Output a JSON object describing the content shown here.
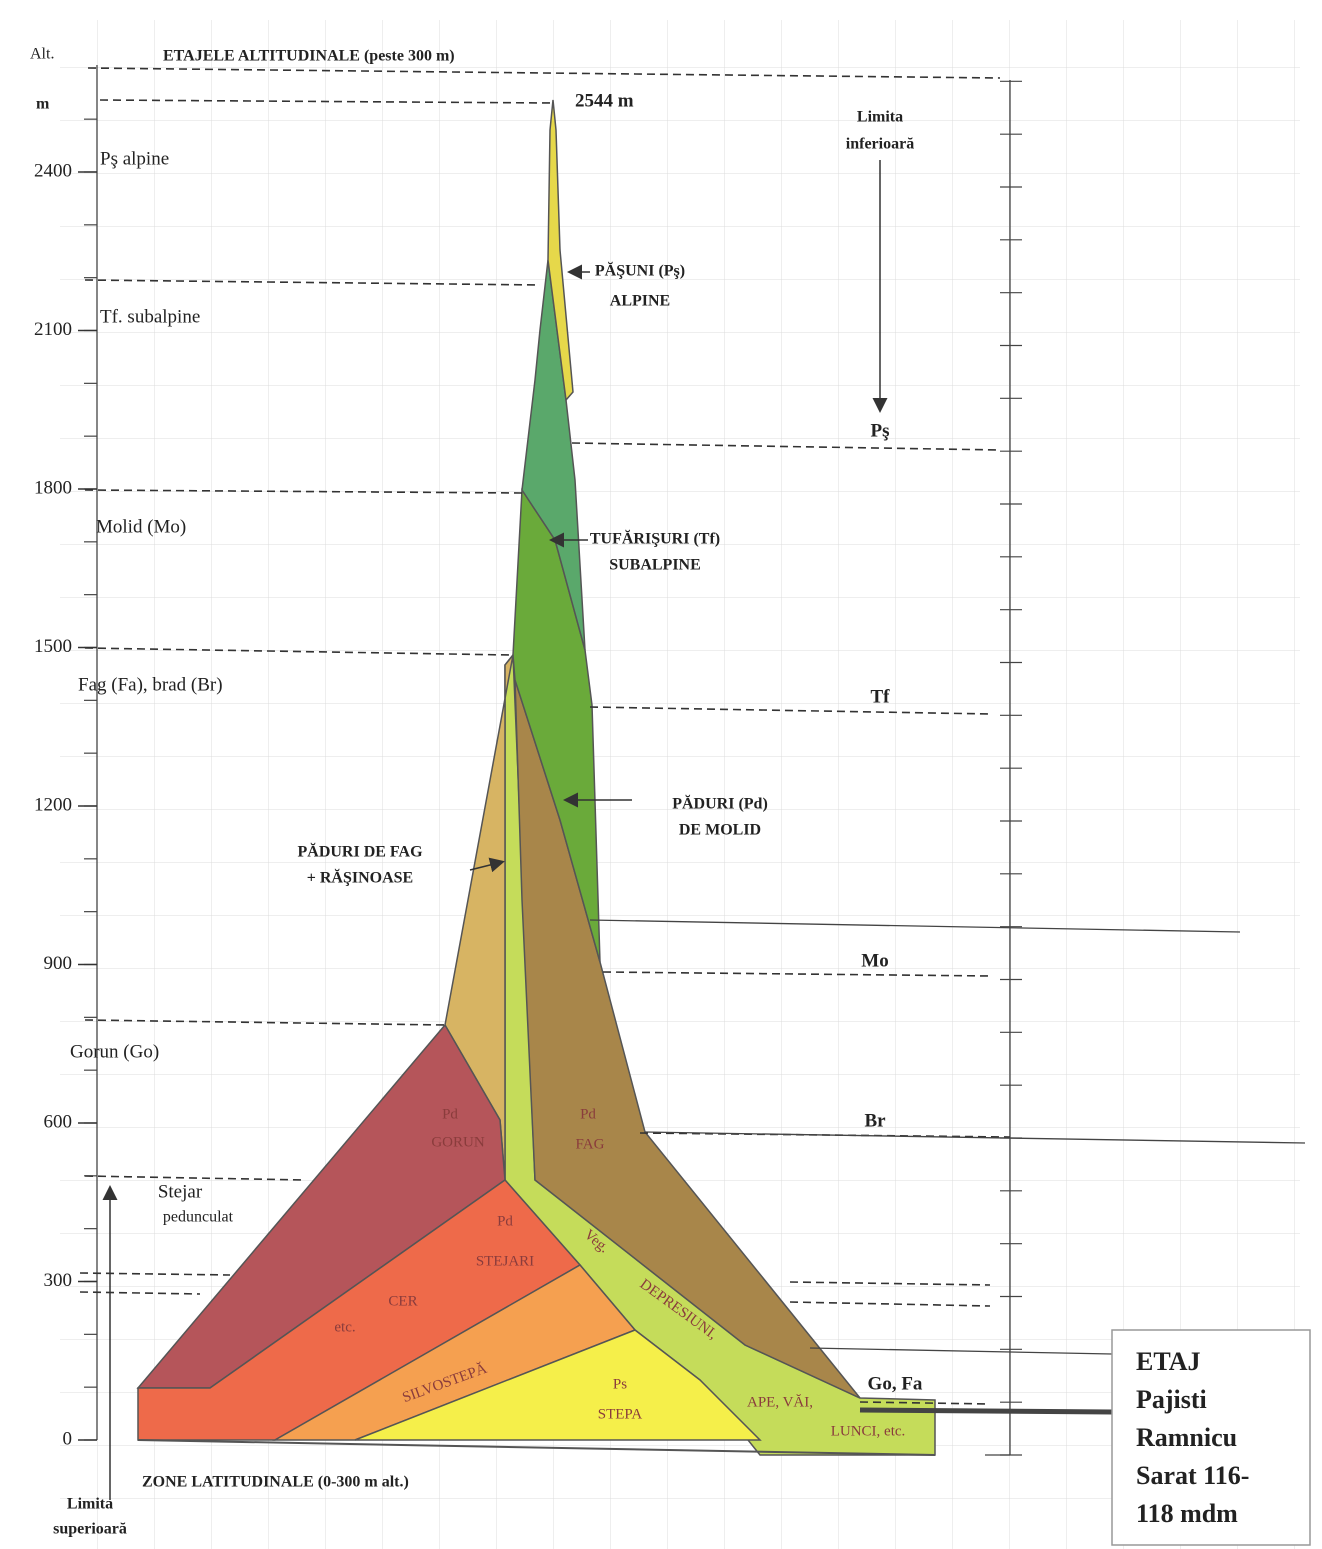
{
  "axis": {
    "title": [
      "Alt.",
      "m"
    ],
    "ticks": [
      0,
      300,
      600,
      900,
      1200,
      1500,
      1800,
      2100,
      2400
    ]
  },
  "header": "ETAJELE ALTITUDINALE (peste 300 m)",
  "peak": "2544 m",
  "lower_limit": [
    "Limita",
    "inferioară"
  ],
  "upper_limit": [
    "Limita",
    "superioară"
  ],
  "left_labels": [
    "Pş alpine",
    "Tf. subalpine",
    "Molid (Mo)",
    "Fag (Fa), brad (Br)",
    "Gorun (Go)",
    "Stejar",
    "pedunculat"
  ],
  "right_labels": [
    "Pş",
    "Tf",
    "Mo",
    "Br",
    "Go, Fa"
  ],
  "zones": [
    [
      "PĂŞUNI (Pş)",
      "ALPINE"
    ],
    [
      "TUFĂRIŞURI (Tf)",
      "SUBALPINE"
    ],
    [
      "PĂDURI (Pd)",
      "DE MOLID"
    ],
    [
      "PĂDURI DE FAG",
      "+ RĂŞINOASE"
    ],
    [
      "Pd",
      "GORUN"
    ],
    [
      "Pd",
      "FAG"
    ],
    [
      "Pd",
      "STEJARI"
    ],
    [
      "CER"
    ],
    [
      "etc."
    ],
    [
      "SILVOSTEPĂ"
    ],
    [
      "Ps",
      "STEPA"
    ],
    [
      "Veg."
    ],
    [
      "DEPRESIUNI,"
    ],
    [
      "APE, VĂI,"
    ],
    [
      "LUNCI, etc."
    ]
  ],
  "footer": "ZONE LATITUDINALE (0-300 m alt.)",
  "note_box": [
    "ETAJ",
    "Pajisti",
    "Ramnicu",
    "Sarat 116-",
    "118 mdm"
  ]
}
